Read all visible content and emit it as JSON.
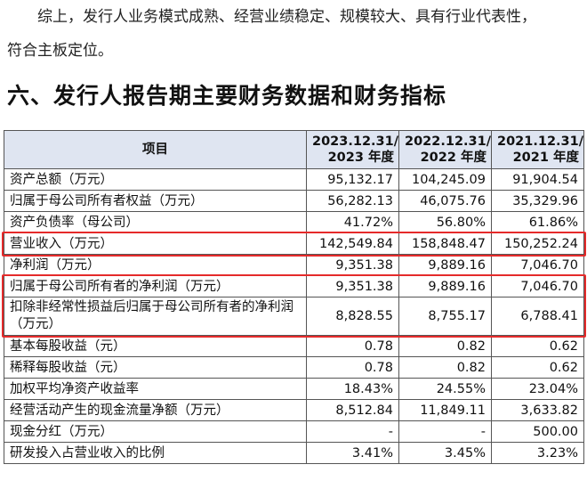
{
  "intro": {
    "line1": "综上，发行人业务模式成熟、经营业绩稳定、规模较大、具有行业代表性，",
    "line2": "符合主板定位。"
  },
  "section_title": "六、发行人报告期主要财务数据和财务指标",
  "table": {
    "headers": [
      "项目",
      "2023.12.31/\n2023 年度",
      "2022.12.31/\n2022 年度",
      "2021.12.31/\n2021 年度"
    ],
    "rows": [
      {
        "item": "资产总额（万元）",
        "v2023": "95,132.17",
        "v2022": "104,245.09",
        "v2021": "91,904.54"
      },
      {
        "item": "归属于母公司所有者权益（万元）",
        "v2023": "56,282.13",
        "v2022": "46,075.76",
        "v2021": "35,329.96"
      },
      {
        "item": "资产负债率（母公司）",
        "v2023": "41.72%",
        "v2022": "56.80%",
        "v2021": "61.86%"
      },
      {
        "item": "营业收入（万元）",
        "v2023": "142,549.84",
        "v2022": "158,848.47",
        "v2021": "150,252.24"
      },
      {
        "item": "净利润（万元）",
        "v2023": "9,351.38",
        "v2022": "9,889.16",
        "v2021": "7,046.70"
      },
      {
        "item": "归属于母公司所有者的净利润（万元）",
        "v2023": "9,351.38",
        "v2022": "9,889.16",
        "v2021": "7,046.70"
      },
      {
        "item": "扣除非经常性损益后归属于母公司所有者的净利润（万元）",
        "v2023": "8,828.55",
        "v2022": "8,755.17",
        "v2021": "6,788.41"
      },
      {
        "item": "基本每股收益（元）",
        "v2023": "0.78",
        "v2022": "0.82",
        "v2021": "0.62"
      },
      {
        "item": "稀释每股收益（元）",
        "v2023": "0.78",
        "v2022": "0.82",
        "v2021": "0.62"
      },
      {
        "item": "加权平均净资产收益率",
        "v2023": "18.43%",
        "v2022": "24.55%",
        "v2021": "23.04%"
      },
      {
        "item": "经营活动产生的现金流量净额（万元）",
        "v2023": "8,512.84",
        "v2022": "11,849.11",
        "v2021": "3,633.82"
      },
      {
        "item": "现金分红（万元）",
        "v2023": "-",
        "v2022": "-",
        "v2021": "500.00"
      },
      {
        "item": "研发投入占营业收入的比例",
        "v2023": "3.41%",
        "v2022": "3.45%",
        "v2021": "3.23%"
      }
    ]
  },
  "colors": {
    "header_bg": "#dfe5f1",
    "highlight": "#e52a2a",
    "border": "#555555"
  }
}
